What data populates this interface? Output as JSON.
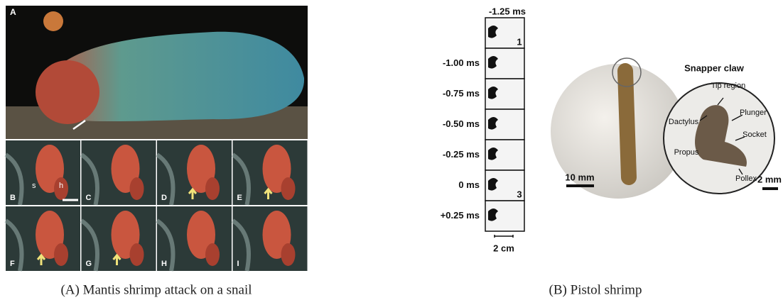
{
  "figure": {
    "panel_a": {
      "main_label": "A",
      "frame_labels": [
        "B",
        "C",
        "D",
        "E",
        "F",
        "G",
        "H",
        "I"
      ],
      "annotations": [
        "s",
        "h"
      ],
      "caption": "(A) Mantis shrimp attack on a snail"
    },
    "panel_b": {
      "strip": {
        "start": "-1.25 ms",
        "times": [
          "-1.00 ms",
          "-0.75 ms",
          "-0.50 ms",
          "-0.25 ms",
          "0 ms",
          "+0.25 ms"
        ],
        "frame_numbers": [
          "1",
          "3"
        ],
        "scale": "2 cm"
      },
      "photo": {
        "title": "Snapper claw",
        "parts": [
          "Tip region",
          "Dactylus",
          "Plunger",
          "Socket",
          "Propus",
          "Pollex"
        ],
        "scales": [
          "10 mm",
          "2 mm"
        ]
      },
      "caption": "(B) Pistol shrimp"
    }
  }
}
